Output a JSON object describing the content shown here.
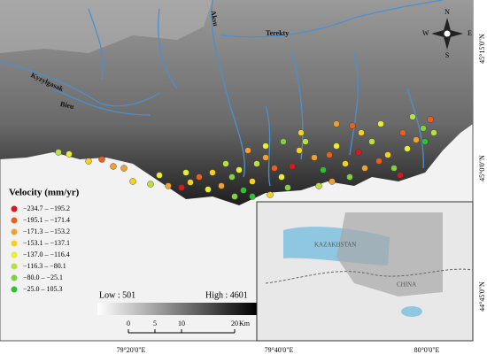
{
  "rivers": [
    "Aksu",
    "Terekty",
    "Kyzylgasak",
    "Bieu"
  ],
  "legend": {
    "title": "Velocity (mm/yr)",
    "items": [
      {
        "label": "−234.7 – −195.2",
        "color": "#d7191c"
      },
      {
        "label": "−195.1 – −171.4",
        "color": "#e8601c"
      },
      {
        "label": "−171.3 – −153.2",
        "color": "#f0a030"
      },
      {
        "label": "−153.1 – −137.1",
        "color": "#f5d020"
      },
      {
        "label": "−137.0 – −116.4",
        "color": "#e6ee30"
      },
      {
        "label": "−116.3 – −80.1",
        "color": "#b8e040"
      },
      {
        "label": "−80.0 – −25.1",
        "color": "#80d040"
      },
      {
        "label": "−25.0 – 105.3",
        "color": "#30c030"
      }
    ]
  },
  "elevation": {
    "low": "Low : 501",
    "high": "High : 4601"
  },
  "scale_bar": {
    "ticks": [
      "0",
      "5",
      "10",
      "20"
    ],
    "unit": "Km"
  },
  "latitude_labels": [
    "45°15'0\"N",
    "45°0'0\"N",
    "44°45'0\"N"
  ],
  "longitude_labels": [
    "79°20'0\"E",
    "79°40'0\"E",
    "80°0'0\"E"
  ],
  "compass": [
    "N",
    "S",
    "E",
    "W"
  ],
  "inset": [
    "KAZAKHSTAN",
    "CHINA"
  ]
}
